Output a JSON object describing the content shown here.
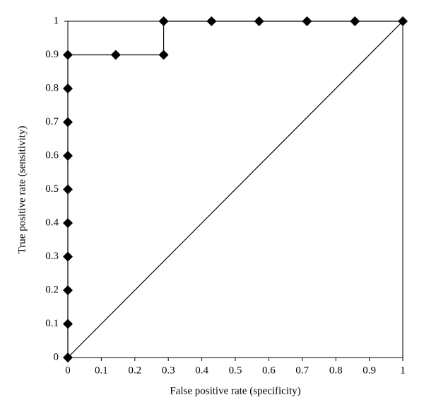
{
  "chart_data": {
    "type": "line",
    "xlabel": "False positive rate (specificity)",
    "ylabel": "True positive rate (sensitivity)",
    "series": [
      {
        "color": "#000000",
        "marker": "diamond",
        "x": [
          0,
          0,
          0,
          0,
          0,
          0,
          0,
          0,
          0,
          0,
          0.143,
          0.286,
          0.286,
          0.429,
          0.571,
          0.714,
          0.857,
          1
        ],
        "values": [
          0,
          0.1,
          0.2,
          0.3,
          0.4,
          0.5,
          0.6,
          0.7,
          0.8,
          0.9,
          0.9,
          0.9,
          1,
          1,
          1,
          1,
          1,
          1
        ]
      },
      {
        "color": "#000000",
        "marker": "none",
        "x": [
          0,
          1
        ],
        "values": [
          0,
          1
        ]
      }
    ],
    "xlim": [
      0,
      1
    ],
    "ylim": [
      0,
      1
    ],
    "xticks": [
      0,
      0.1,
      0.2,
      0.3,
      0.4,
      0.5,
      0.6,
      0.7,
      0.8,
      0.9,
      1
    ],
    "yticks": [
      0,
      0.1,
      0.2,
      0.3,
      0.4,
      0.5,
      0.6,
      0.7,
      0.8,
      0.9,
      1
    ],
    "grid": false,
    "frame": true
  }
}
